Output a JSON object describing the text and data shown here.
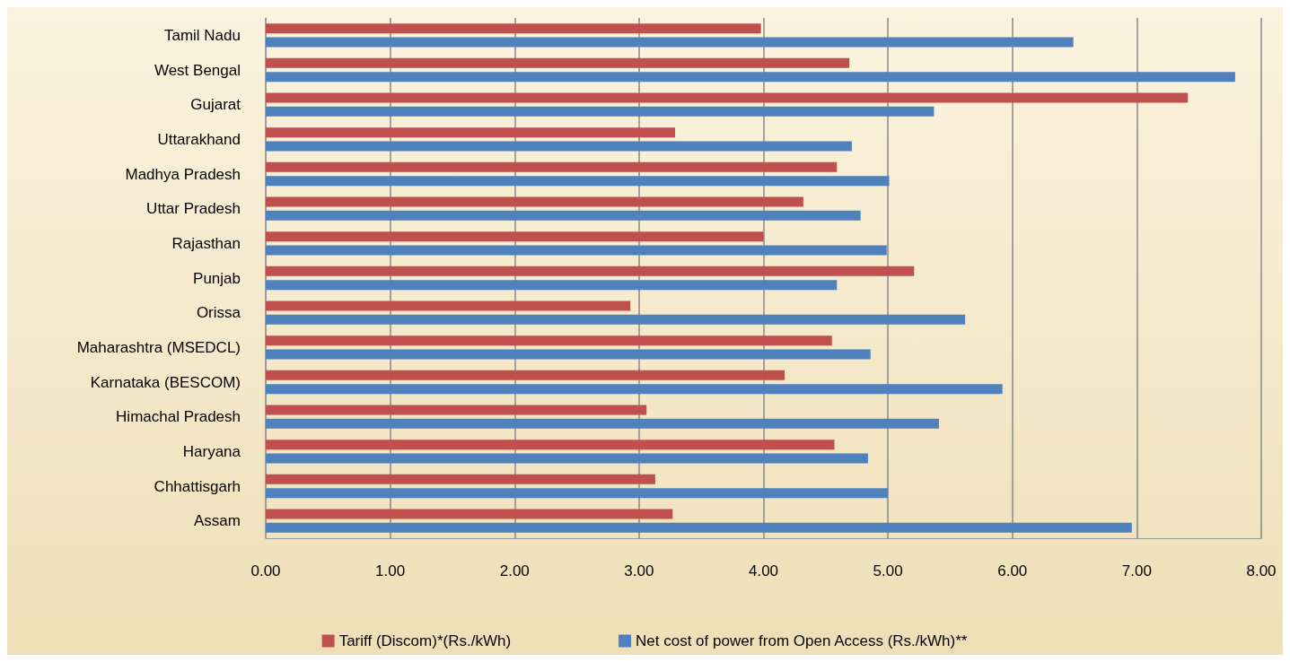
{
  "chart_data": {
    "type": "bar",
    "orientation": "horizontal",
    "categories": [
      "Tamil Nadu",
      "West Bengal",
      "Gujarat",
      "Uttarakhand",
      "Madhya Pradesh",
      "Uttar Pradesh",
      "Rajasthan",
      "Punjab",
      "Orissa",
      "Maharashtra (MSEDCL)",
      "Karnataka (BESCOM)",
      "Himachal Pradesh",
      "Haryana",
      "Chhattisgarh",
      "Assam"
    ],
    "series": [
      {
        "name": "Tariff (Discom)*(Rs./kWh)",
        "color": "#c0504d",
        "values": [
          3.98,
          4.69,
          7.41,
          3.29,
          4.59,
          4.32,
          4.0,
          5.21,
          2.93,
          4.55,
          4.17,
          3.06,
          4.57,
          3.13,
          3.27
        ]
      },
      {
        "name": "Net cost of power from Open Access (Rs./kWh)**",
        "color": "#4f81bd",
        "values": [
          6.49,
          7.79,
          5.37,
          4.71,
          5.01,
          4.78,
          4.99,
          4.59,
          5.62,
          4.86,
          5.92,
          5.41,
          4.84,
          5.0,
          6.96
        ]
      }
    ],
    "xlim": [
      0,
      8
    ],
    "xticks": [
      {
        "value": 0,
        "label": "0.00"
      },
      {
        "value": 1,
        "label": "1.00"
      },
      {
        "value": 2,
        "label": "2.00"
      },
      {
        "value": 3,
        "label": "3.00"
      },
      {
        "value": 4,
        "label": "4.00"
      },
      {
        "value": 5,
        "label": "5.00"
      },
      {
        "value": 6,
        "label": "6.00"
      },
      {
        "value": 7,
        "label": "7.00"
      },
      {
        "value": 8,
        "label": "8.00"
      }
    ],
    "grid": "x",
    "legend": "bottom"
  }
}
